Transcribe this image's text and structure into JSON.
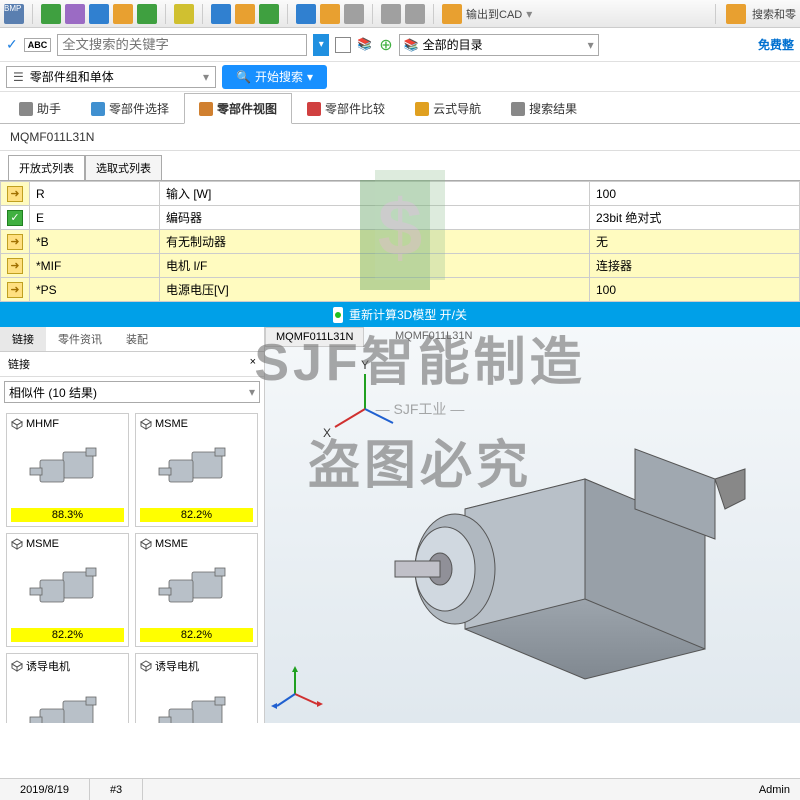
{
  "toolbar": {
    "bmp_label": "BMP",
    "cad_export": "输出到CAD",
    "search_parts": "搜索和零"
  },
  "search": {
    "placeholder": "全文搜索的关键字",
    "directory_label": "全部的目录",
    "free_integration": "免费整"
  },
  "filter": {
    "component_label": "零部件组和单体",
    "start_search": "开始搜索"
  },
  "main_tabs": [
    {
      "label": "助手",
      "icon": "assistant"
    },
    {
      "label": "零部件选择",
      "icon": "select"
    },
    {
      "label": "零部件视图",
      "icon": "view",
      "active": true
    },
    {
      "label": "零部件比较",
      "icon": "compare"
    },
    {
      "label": "云式导航",
      "icon": "cloud"
    },
    {
      "label": "搜索结果",
      "icon": "search"
    }
  ],
  "part_number": "MQMF011L31N",
  "list_tabs": [
    "开放式列表",
    "选取式列表"
  ],
  "params": [
    {
      "code": "R",
      "name": "输入 [W]",
      "value": "100",
      "hl": false,
      "ok": false
    },
    {
      "code": "E",
      "name": "编码器",
      "value": "23bit 绝对式",
      "hl": false,
      "ok": true
    },
    {
      "code": "*B",
      "name": "有无制动器",
      "value": "无",
      "hl": true,
      "ok": false
    },
    {
      "code": "*MIF",
      "name": "电机 I/F",
      "value": "连接器",
      "hl": true,
      "ok": false
    },
    {
      "code": "*PS",
      "name": "电源电压[V]",
      "value": "100",
      "hl": true,
      "ok": false
    }
  ],
  "recalc": "重新计算3D模型 开/关",
  "sub_tabs": [
    "链接",
    "零件资讯",
    "装配"
  ],
  "link_title": "链接",
  "similar_label": "相似件 (10 结果)",
  "thumbs": [
    {
      "name": "MHMF",
      "pct": "88.3%"
    },
    {
      "name": "MSME",
      "pct": "82.2%"
    },
    {
      "name": "MSME",
      "pct": "82.2%"
    },
    {
      "name": "MSME",
      "pct": "82.2%"
    },
    {
      "name": "诱导电机",
      "pct": ""
    },
    {
      "name": "诱导电机",
      "pct": ""
    }
  ],
  "model_tab": "MQMF011L31N",
  "viewport_label": "MQMF011L31N",
  "axis": {
    "x": "X",
    "y": "Y"
  },
  "watermark": {
    "line1": "SJF智能制造",
    "line2": "SJF工业",
    "line3": "盗图必究"
  },
  "status": {
    "date": "2019/8/19",
    "num": "#3",
    "user": "Admin"
  },
  "colors": {
    "accent": "#1890ff",
    "recalc_bg": "#00a0e8",
    "highlight": "#fffbc0",
    "pct_bg": "#ffff00"
  }
}
